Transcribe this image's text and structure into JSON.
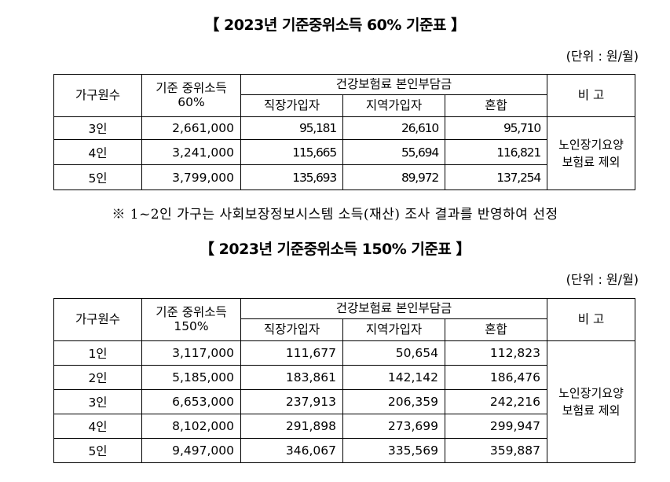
{
  "table1": {
    "title": "【 2023년 기준중위소득 60% 기준표 】",
    "unit": "(단위 : 원/월)",
    "headers": {
      "household": "가구원수",
      "median_line1": "기준 중위소득",
      "median_line2": "60%",
      "premium_group": "건강보험료 본인부담금",
      "workplace": "직장가입자",
      "regional": "지역가입자",
      "mixed": "혼합",
      "remark": "비 고"
    },
    "remark_line1": "노인장기요양",
    "remark_line2": "보험료 제외",
    "rows": [
      {
        "household": "3인",
        "median": "2,661,000",
        "workplace": "95,181",
        "regional": "26,610",
        "mixed": "95,710"
      },
      {
        "household": "4인",
        "median": "3,241,000",
        "workplace": "115,665",
        "regional": "55,694",
        "mixed": "116,821"
      },
      {
        "household": "5인",
        "median": "3,799,000",
        "workplace": "135,693",
        "regional": "89,972",
        "mixed": "137,254"
      }
    ]
  },
  "note": "※ 1~2인 가구는 사회보장정보시스템 소득(재산) 조사 결과를 반영하여 선정",
  "table2": {
    "title": "【 2023년 기준중위소득 150% 기준표 】",
    "unit": "(단위 : 원/월)",
    "headers": {
      "household": "가구원수",
      "median_line1": "기준 중위소득",
      "median_line2": "150%",
      "premium_group": "건강보험료 본인부담금",
      "workplace": "직장가입자",
      "regional": "지역가입자",
      "mixed": "혼합",
      "remark": "비 고"
    },
    "remark_line1": "노인장기요양",
    "remark_line2": "보험료 제외",
    "rows": [
      {
        "household": "1인",
        "median": "3,117,000",
        "workplace": "111,677",
        "regional": "50,654",
        "mixed": "112,823"
      },
      {
        "household": "2인",
        "median": "5,185,000",
        "workplace": "183,861",
        "regional": "142,142",
        "mixed": "186,476"
      },
      {
        "household": "3인",
        "median": "6,653,000",
        "workplace": "237,913",
        "regional": "206,359",
        "mixed": "242,216"
      },
      {
        "household": "4인",
        "median": "8,102,000",
        "workplace": "291,898",
        "regional": "273,699",
        "mixed": "299,947"
      },
      {
        "household": "5인",
        "median": "9,497,000",
        "workplace": "346,067",
        "regional": "335,569",
        "mixed": "359,887"
      }
    ]
  }
}
